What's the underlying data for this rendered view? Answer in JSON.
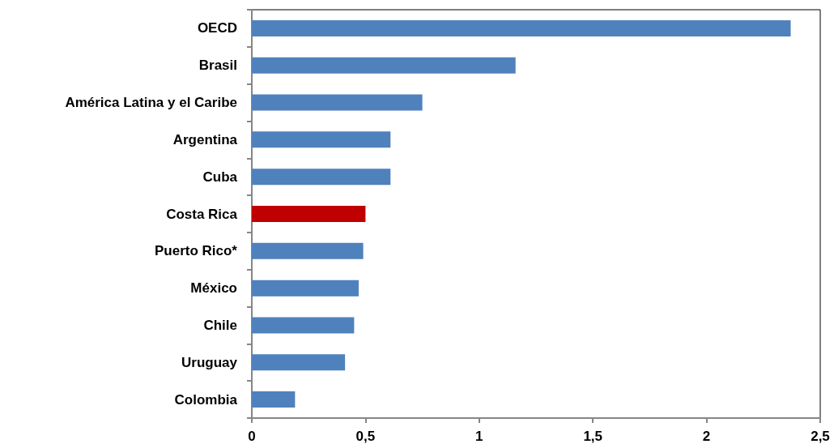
{
  "chart_data": {
    "type": "bar",
    "orientation": "horizontal",
    "categories": [
      "OECD",
      "Brasil",
      "América Latina y el Caribe",
      "Argentina",
      "Cuba",
      "Costa Rica",
      "Puerto Rico*",
      "México",
      "Chile",
      "Uruguay",
      "Colombia"
    ],
    "values": [
      2.37,
      1.16,
      0.75,
      0.61,
      0.61,
      0.5,
      0.49,
      0.47,
      0.45,
      0.41,
      0.19
    ],
    "colors": [
      "#4f81bd",
      "#4f81bd",
      "#4f81bd",
      "#4f81bd",
      "#4f81bd",
      "#c00000",
      "#4f81bd",
      "#4f81bd",
      "#4f81bd",
      "#4f81bd",
      "#4f81bd"
    ],
    "xlim": [
      0,
      2.5
    ],
    "xticks": [
      0,
      {
        "value": 0.5,
        "label": "0,5"
      },
      1,
      {
        "value": 1.5,
        "label": "1,5"
      },
      2,
      {
        "value": 2.5,
        "label": "2,5"
      }
    ],
    "grid": false
  }
}
